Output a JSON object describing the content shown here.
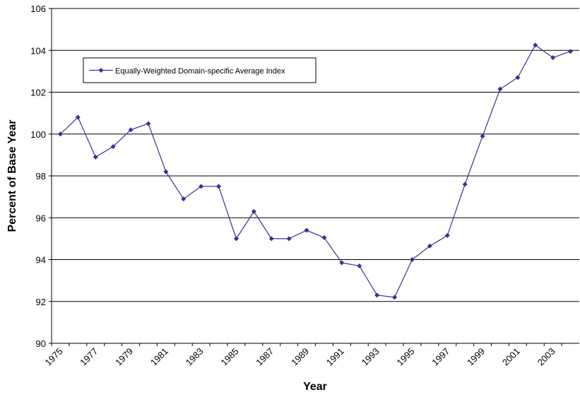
{
  "chart_data": {
    "type": "line",
    "x_label": "Year",
    "y_label": "Percent of Base Year",
    "categories": [
      "1975",
      null,
      "1977",
      null,
      "1979",
      null,
      "1981",
      null,
      "1983",
      null,
      "1985",
      null,
      "1987",
      null,
      "1989",
      null,
      "1991",
      null,
      "1993",
      null,
      "1995",
      null,
      "1997",
      null,
      "1999",
      null,
      "2001",
      null,
      "2003",
      null
    ],
    "series": [
      {
        "name": "Equally-Weighted Domain-specific Average Index",
        "color": "#333399",
        "values": [
          100.0,
          100.8,
          98.9,
          99.4,
          100.2,
          100.5,
          98.2,
          96.9,
          97.5,
          97.5,
          95.0,
          96.3,
          95.0,
          95.0,
          95.4,
          95.05,
          93.85,
          93.7,
          92.3,
          92.2,
          94.0,
          94.65,
          95.15,
          97.6,
          99.9,
          102.15,
          102.7,
          104.25,
          103.65,
          103.95
        ]
      }
    ],
    "ylim": [
      90,
      106
    ],
    "yticks": [
      90,
      92,
      94,
      96,
      98,
      100,
      102,
      104,
      106
    ],
    "grid": true,
    "legend": "upper left"
  }
}
